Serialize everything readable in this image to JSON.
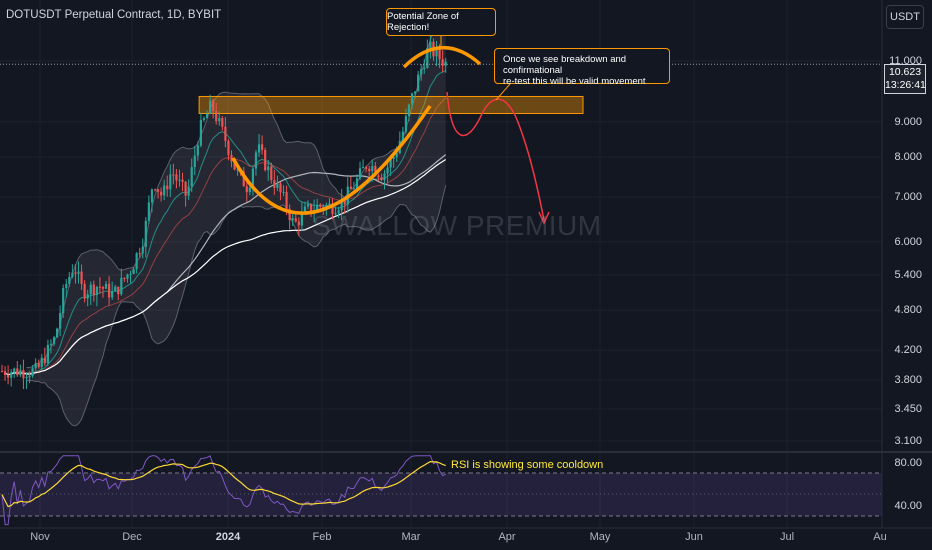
{
  "header": {
    "title": "DOTUSDT Perpetual Contract, 1D, BYBIT",
    "currency": "USDT"
  },
  "watermark": "SWALLOW PREMIUM",
  "price_label": {
    "price": "10.623",
    "countdown": "13:26:41"
  },
  "annotations": {
    "rejection": "Potential Zone of Rejection!",
    "breakdown_line1": "Once we see breakdown and confirmational",
    "breakdown_line2": "re-test this will be valid movement",
    "rsi": "RSI is showing some cooldown"
  },
  "colors": {
    "background": "#131722",
    "up": "#26a69a",
    "down": "#ef5350",
    "orange": "#ff9800",
    "rsi_line": "#7e57c2",
    "rsi_ma": "#fdd835",
    "forecast": "#f23645"
  },
  "chart_data": {
    "type": "candlestick",
    "title": "DOTUSDT Perpetual Contract, 1D, BYBIT",
    "scale": "log",
    "y_ticks": [
      "11.000",
      "9.000",
      "8.000",
      "7.000",
      "6.000",
      "5.400",
      "4.800",
      "4.200",
      "3.800",
      "3.450",
      "3.100"
    ],
    "x_ticks": [
      "Nov",
      "Dec",
      "2024",
      "Feb",
      "Mar",
      "Apr",
      "May",
      "Jun",
      "Jul",
      "Au"
    ],
    "last_price": 10.623,
    "price_path": [
      [
        "2023-10-31",
        4.05
      ],
      [
        "2023-11-06",
        4.5
      ],
      [
        "2023-11-09",
        5.25
      ],
      [
        "2023-11-12",
        5.65
      ],
      [
        "2023-11-15",
        5.2
      ],
      [
        "2023-11-20",
        5.3
      ],
      [
        "2023-11-25",
        5.15
      ],
      [
        "2023-12-01",
        5.6
      ],
      [
        "2023-12-05",
        6.2
      ],
      [
        "2023-12-08",
        7.4
      ],
      [
        "2023-12-11",
        7.0
      ],
      [
        "2023-12-14",
        7.6
      ],
      [
        "2023-12-19",
        7.0
      ],
      [
        "2023-12-23",
        8.6
      ],
      [
        "2023-12-27",
        9.35
      ],
      [
        "2024-01-01",
        8.3
      ],
      [
        "2024-01-04",
        7.6
      ],
      [
        "2024-01-08",
        7.2
      ],
      [
        "2024-01-11",
        8.2
      ],
      [
        "2024-01-16",
        7.4
      ],
      [
        "2024-01-20",
        6.9
      ],
      [
        "2024-01-23",
        6.4
      ],
      [
        "2024-01-27",
        6.7
      ],
      [
        "2024-01-31",
        6.8
      ],
      [
        "2024-02-05",
        6.8
      ],
      [
        "2024-02-08",
        6.9
      ],
      [
        "2024-02-12",
        7.3
      ],
      [
        "2024-02-16",
        7.8
      ],
      [
        "2024-02-21",
        7.5
      ],
      [
        "2024-02-25",
        8.0
      ],
      [
        "2024-02-28",
        8.7
      ],
      [
        "2024-03-01",
        9.4
      ],
      [
        "2024-03-04",
        10.3
      ],
      [
        "2024-03-07",
        11.2
      ],
      [
        "2024-03-10",
        10.9
      ],
      [
        "2024-03-13",
        10.623
      ]
    ],
    "resistance_zone": [
      9.1,
      9.6
    ],
    "rsi": {
      "levels": [
        70,
        30
      ],
      "ticks": [
        "80.00",
        "40.00"
      ]
    }
  }
}
